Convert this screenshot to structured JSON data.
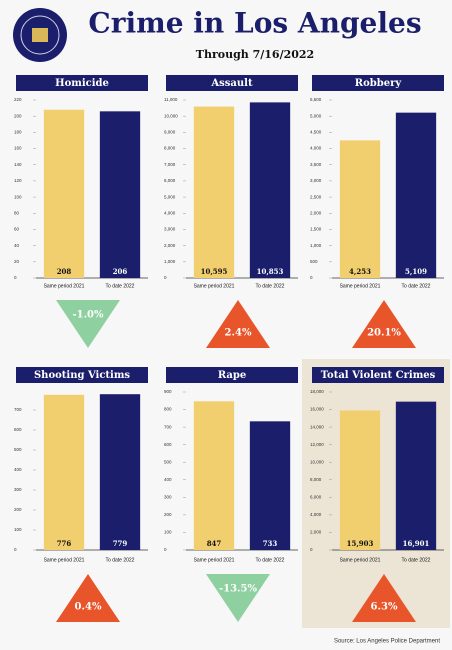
{
  "title": "Crime in Los Angeles",
  "subtitle": "Through 7/16/2022",
  "source": "Source: Los Angeles Police Department",
  "chart_data": [
    {
      "type": "bar",
      "title": "Homicide",
      "categories": [
        "Same period 2021",
        "To date 2022"
      ],
      "values": [
        208,
        206
      ],
      "colors": [
        "#f2cf6e",
        "#1b1f6b"
      ],
      "ylim": [
        0,
        220
      ],
      "yticks": [
        0,
        20,
        40,
        60,
        80,
        100,
        120,
        140,
        160,
        180,
        200,
        220
      ],
      "annotation": "-1.0%",
      "annotation_direction": "down",
      "annotation_color": "#8fd0a0"
    },
    {
      "type": "bar",
      "title": "Assault",
      "categories": [
        "Same period 2021",
        "To date 2022"
      ],
      "values": [
        10595,
        10853
      ],
      "value_labels": [
        "10,595",
        "10,853"
      ],
      "colors": [
        "#f2cf6e",
        "#1b1f6b"
      ],
      "ylim": [
        0,
        11000
      ],
      "yticks": [
        0,
        {
          "value": 1000,
          "label": "1,000"
        },
        {
          "value": 2000,
          "label": "2,000"
        },
        {
          "value": 3000,
          "label": "3,000"
        },
        {
          "value": 4000,
          "label": "4,000"
        },
        {
          "value": 5000,
          "label": "5,000"
        },
        {
          "value": 6000,
          "label": "6,000"
        },
        {
          "value": 7000,
          "label": "7,000"
        },
        {
          "value": 8000,
          "label": "8,000"
        },
        {
          "value": 9000,
          "label": "9,000"
        },
        {
          "value": 10000,
          "label": "10,000"
        },
        {
          "value": 11000,
          "label": "11,000"
        }
      ],
      "annotation": "2.4%",
      "annotation_direction": "up",
      "annotation_color": "#e8552a"
    },
    {
      "type": "bar",
      "title": "Robbery",
      "categories": [
        "Same period 2021",
        "To date 2022"
      ],
      "values": [
        4253,
        5109
      ],
      "value_labels": [
        "4,253",
        "5,109"
      ],
      "colors": [
        "#f2cf6e",
        "#1b1f6b"
      ],
      "ylim": [
        0,
        5500
      ],
      "yticks": [
        0,
        500,
        {
          "value": 1000,
          "label": "1,000"
        },
        {
          "value": 1500,
          "label": "1,500"
        },
        {
          "value": 2000,
          "label": "2,000"
        },
        {
          "value": 2500,
          "label": "2,500"
        },
        {
          "value": 3000,
          "label": "3,000"
        },
        {
          "value": 3500,
          "label": "3,500"
        },
        {
          "value": 4000,
          "label": "4,000"
        },
        {
          "value": 4500,
          "label": "4,500"
        },
        {
          "value": 5000,
          "label": "5,000"
        },
        {
          "value": 5500,
          "label": "5,500"
        }
      ],
      "annotation": "20.1%",
      "annotation_direction": "up",
      "annotation_color": "#e8552a"
    },
    {
      "type": "bar",
      "title": "Shooting Victims",
      "categories": [
        "Same period 2021",
        "To date 2022"
      ],
      "values": [
        776,
        779
      ],
      "colors": [
        "#f2cf6e",
        "#1b1f6b"
      ],
      "ylim": [
        0,
        790
      ],
      "yticks": [
        0,
        100,
        200,
        300,
        400,
        500,
        600,
        700
      ],
      "annotation": "0.4%",
      "annotation_direction": "up",
      "annotation_color": "#e8552a"
    },
    {
      "type": "bar",
      "title": "Rape",
      "categories": [
        "Same period 2021",
        "To date 2022"
      ],
      "values": [
        847,
        733
      ],
      "colors": [
        "#f2cf6e",
        "#1b1f6b"
      ],
      "ylim": [
        0,
        900
      ],
      "yticks": [
        0,
        100,
        200,
        300,
        400,
        500,
        600,
        700,
        800,
        900
      ],
      "annotation": "-13.5%",
      "annotation_direction": "down",
      "annotation_color": "#8fd0a0"
    },
    {
      "type": "bar",
      "title": "Total Violent Crimes",
      "categories": [
        "Same period 2021",
        "To date 2022"
      ],
      "values": [
        15903,
        16901
      ],
      "value_labels": [
        "15,903",
        "16,901"
      ],
      "colors": [
        "#f2cf6e",
        "#1b1f6b"
      ],
      "ylim": [
        0,
        18000
      ],
      "yticks": [
        0,
        {
          "value": 2000,
          "label": "2,000"
        },
        {
          "value": 4000,
          "label": "4,000"
        },
        {
          "value": 6000,
          "label": "6,000"
        },
        {
          "value": 8000,
          "label": "8,000"
        },
        {
          "value": 10000,
          "label": "10,000"
        },
        {
          "value": 12000,
          "label": "12,000"
        },
        {
          "value": 14000,
          "label": "14,000"
        },
        {
          "value": 16000,
          "label": "16,000"
        },
        {
          "value": 18000,
          "label": "18,000"
        }
      ],
      "annotation": "6.3%",
      "annotation_direction": "up",
      "annotation_color": "#e8552a",
      "panel_color": "#ece5d6"
    }
  ]
}
